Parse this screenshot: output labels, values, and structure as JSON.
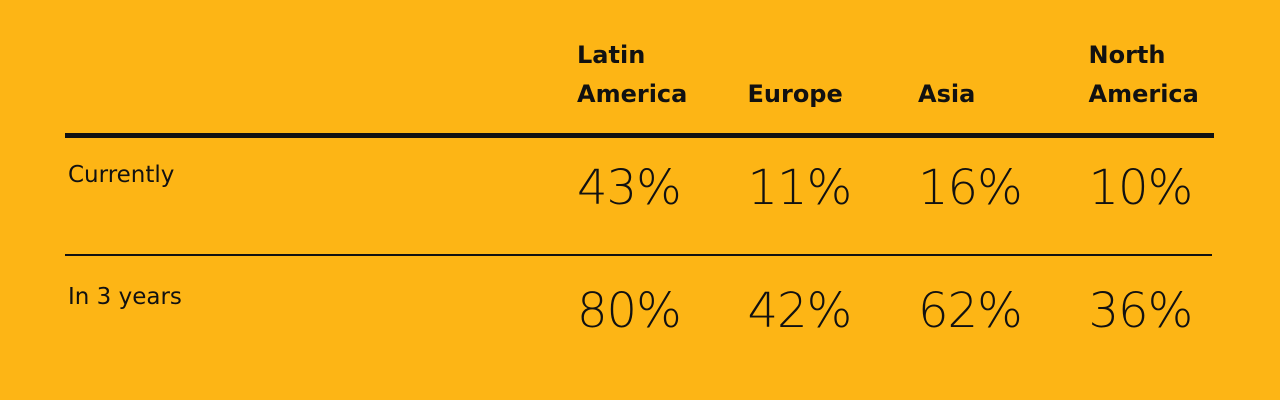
{
  "table": {
    "columns": [
      "Latin America",
      "Europe",
      "Asia",
      "North America"
    ],
    "rows": [
      {
        "label": "Currently",
        "cells": [
          "43%",
          "11%",
          "16%",
          "10%"
        ]
      },
      {
        "label": "In 3 years",
        "cells": [
          "80%",
          "42%",
          "62%",
          "36%"
        ]
      }
    ]
  }
}
